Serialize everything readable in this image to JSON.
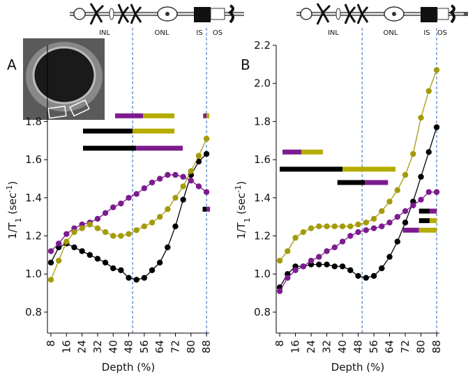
{
  "chart_data": [
    {
      "type": "line",
      "label": "A",
      "xlabel": "Depth (%)",
      "ylabel": [
        "1/T",
        "1",
        " (sec",
        "-1",
        ")"
      ],
      "layers": [
        "INL",
        "ONL",
        "IS",
        "OS"
      ],
      "layer_lines": [
        50,
        88
      ],
      "xlim": [
        6.2,
        89.4
      ],
      "ylim": [
        0.69,
        2.2
      ],
      "xticks": [
        8,
        16,
        24,
        32,
        40,
        48,
        56,
        64,
        72,
        80,
        88
      ],
      "yticks": [
        0.8,
        {
          "value": 1,
          "label": "1.0"
        },
        1.2,
        1.4,
        1.6,
        1.8
      ],
      "x": [
        8,
        12,
        16,
        20,
        24,
        28,
        32,
        36,
        40,
        44,
        48,
        52,
        56,
        60,
        64,
        68,
        72,
        76,
        80,
        84,
        88
      ],
      "series": [
        {
          "color": "#000000",
          "values": [
            1.06,
            1.14,
            1.16,
            1.14,
            1.12,
            1.1,
            1.08,
            1.06,
            1.03,
            1.02,
            0.98,
            0.97,
            0.98,
            1.02,
            1.06,
            1.14,
            1.25,
            1.39,
            1.52,
            1.59,
            1.63
          ]
        },
        {
          "color": "#7d1b8e",
          "values": [
            1.12,
            1.16,
            1.21,
            1.24,
            1.26,
            1.27,
            1.29,
            1.32,
            1.35,
            1.37,
            1.4,
            1.42,
            1.45,
            1.48,
            1.5,
            1.52,
            1.52,
            1.51,
            1.49,
            1.46,
            1.43
          ]
        },
        {
          "color": "#a39b0a",
          "values": [
            0.97,
            1.07,
            1.17,
            1.22,
            1.24,
            1.26,
            1.24,
            1.22,
            1.2,
            1.2,
            1.21,
            1.23,
            1.25,
            1.27,
            1.3,
            1.34,
            1.4,
            1.46,
            1.54,
            1.62,
            1.71
          ]
        }
      ],
      "bars": [
        {
          "y": 1.83,
          "from": 41,
          "to": 55.4,
          "color": "#7d1b8e"
        },
        {
          "y": 1.83,
          "from": 55.4,
          "to": 71.5,
          "color": "#b5ac00"
        },
        {
          "y": 1.83,
          "from": 86.3,
          "to": 88,
          "color": "#7d1b8e"
        },
        {
          "y": 1.83,
          "from": 88,
          "to": 89.4,
          "color": "#b5ac00"
        },
        {
          "y": 1.75,
          "from": 24.5,
          "to": 50,
          "color": "#000000"
        },
        {
          "y": 1.75,
          "from": 50,
          "to": 71.5,
          "color": "#b5ac00"
        },
        {
          "y": 1.66,
          "from": 24.5,
          "to": 51.8,
          "color": "#000000"
        },
        {
          "y": 1.66,
          "from": 51.8,
          "to": 75.8,
          "color": "#7d1b8e"
        },
        {
          "y": 1.34,
          "from": 86,
          "to": 88,
          "color": "#000000"
        },
        {
          "y": 1.34,
          "from": 88,
          "to": 89.8,
          "color": "#7d1b8e"
        }
      ]
    },
    {
      "type": "line",
      "label": "B",
      "xlabel": "Depth (%)",
      "ylabel": [
        "1/T",
        "1",
        " (sec",
        "-1",
        ")"
      ],
      "layers": [
        "INL",
        "ONL",
        "IS",
        "OS"
      ],
      "layer_lines": [
        50,
        88
      ],
      "xlim": [
        6.2,
        89.4
      ],
      "ylim": [
        0.69,
        2.2
      ],
      "xticks": [
        8,
        16,
        24,
        32,
        40,
        48,
        56,
        64,
        72,
        80,
        88
      ],
      "yticks": [
        0.8,
        {
          "value": 1,
          "label": "1.0"
        },
        1.2,
        1.4,
        1.6,
        1.8,
        {
          "value": 2,
          "label": "2.0"
        },
        2.2
      ],
      "x": [
        8,
        12,
        16,
        20,
        24,
        28,
        32,
        36,
        40,
        44,
        48,
        52,
        56,
        60,
        64,
        68,
        72,
        76,
        80,
        84,
        88
      ],
      "series": [
        {
          "color": "#000000",
          "values": [
            0.93,
            1.0,
            1.04,
            1.04,
            1.05,
            1.05,
            1.05,
            1.04,
            1.04,
            1.02,
            0.99,
            0.98,
            0.99,
            1.03,
            1.09,
            1.17,
            1.27,
            1.38,
            1.51,
            1.64,
            1.77
          ]
        },
        {
          "color": "#7d1b8e",
          "values": [
            0.91,
            0.98,
            1.02,
            1.04,
            1.07,
            1.09,
            1.12,
            1.14,
            1.17,
            1.2,
            1.22,
            1.23,
            1.24,
            1.25,
            1.27,
            1.3,
            1.33,
            1.36,
            1.39,
            1.43,
            1.43
          ]
        },
        {
          "color": "#a39b0a",
          "values": [
            1.07,
            1.12,
            1.19,
            1.22,
            1.24,
            1.25,
            1.25,
            1.25,
            1.25,
            1.25,
            1.26,
            1.27,
            1.29,
            1.33,
            1.38,
            1.44,
            1.52,
            1.63,
            1.82,
            1.96,
            2.07
          ]
        }
      ],
      "bars": [
        {
          "y": 1.64,
          "from": 9.4,
          "to": 19,
          "color": "#7d1b8e"
        },
        {
          "y": 1.64,
          "from": 19,
          "to": 30,
          "color": "#b5ac00"
        },
        {
          "y": 1.55,
          "from": 8,
          "to": 40,
          "color": "#000000"
        },
        {
          "y": 1.55,
          "from": 40,
          "to": 67,
          "color": "#b5ac00"
        },
        {
          "y": 1.48,
          "from": 37.4,
          "to": 51.4,
          "color": "#000000"
        },
        {
          "y": 1.48,
          "from": 51.4,
          "to": 63.2,
          "color": "#7d1b8e"
        },
        {
          "y": 1.33,
          "from": 79,
          "to": 84.4,
          "color": "#000000"
        },
        {
          "y": 1.33,
          "from": 84.4,
          "to": 88,
          "color": "#7d1b8e"
        },
        {
          "y": 1.28,
          "from": 79,
          "to": 84.4,
          "color": "#000000"
        },
        {
          "y": 1.28,
          "from": 84.4,
          "to": 88,
          "color": "#b5ac00"
        },
        {
          "y": 1.23,
          "from": 70.8,
          "to": 79,
          "color": "#7d1b8e"
        },
        {
          "y": 1.23,
          "from": 79,
          "to": 88,
          "color": "#b5ac00"
        }
      ]
    }
  ]
}
